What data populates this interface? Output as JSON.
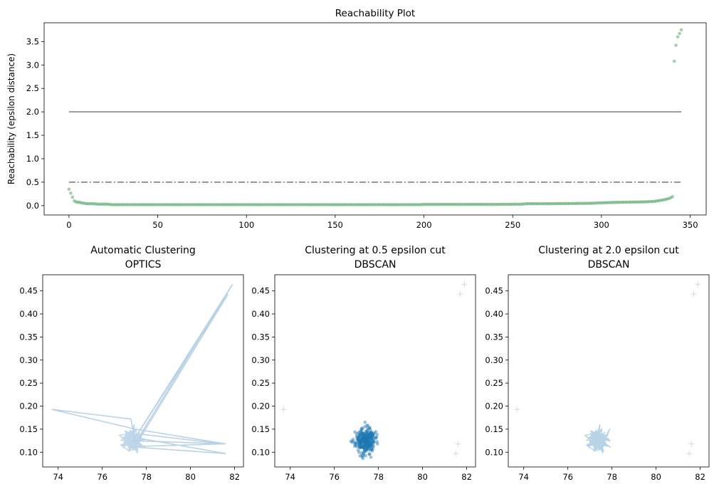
{
  "chart_data": [
    {
      "type": "scatter",
      "title": "Reachability Plot",
      "xlabel": "",
      "ylabel": "Reachability (epsilon distance)",
      "xlim": [
        -14,
        359
      ],
      "ylim": [
        -0.2,
        3.9
      ],
      "xticks": [
        "0",
        "50",
        "100",
        "150",
        "200",
        "250",
        "300",
        "350"
      ],
      "yticks": [
        "0.0",
        "0.5",
        "1.0",
        "1.5",
        "2.0",
        "2.5",
        "3.0",
        "3.5"
      ],
      "point_color": "#55a868",
      "reference_lines": [
        {
          "y": 2.0,
          "x_range": [
            0,
            345
          ],
          "style": "solid",
          "color": "#7f7f7f"
        },
        {
          "y": 0.5,
          "x_range": [
            0,
            345
          ],
          "style": "dashdot",
          "color": "#7f7f7f"
        }
      ],
      "series": [
        {
          "points": [
            [
              0,
              0.35
            ],
            [
              2,
              0.18
            ],
            [
              3,
              0.1
            ],
            [
              4,
              0.08
            ],
            [
              5,
              0.07
            ],
            [
              6,
              0.07
            ],
            [
              7,
              0.06
            ],
            [
              8,
              0.05
            ],
            [
              9,
              0.05
            ],
            [
              10,
              0.04
            ],
            [
              12,
              0.04
            ],
            [
              14,
              0.04
            ],
            [
              16,
              0.03
            ],
            [
              18,
              0.03
            ],
            [
              20,
              0.03
            ],
            [
              22,
              0.03
            ],
            [
              24,
              0.02
            ],
            [
              30,
              0.02
            ],
            [
              40,
              0.02
            ],
            [
              60,
              0.02
            ],
            [
              80,
              0.02
            ],
            [
              100,
              0.02
            ],
            [
              120,
              0.02
            ],
            [
              140,
              0.02
            ],
            [
              160,
              0.02
            ],
            [
              180,
              0.02
            ],
            [
              198,
              0.02
            ],
            [
              200,
              0.025
            ],
            [
              220,
              0.025
            ],
            [
              240,
              0.025
            ],
            [
              255,
              0.03
            ],
            [
              258,
              0.04
            ],
            [
              270,
              0.04
            ],
            [
              285,
              0.045
            ],
            [
              295,
              0.05
            ],
            [
              300,
              0.06
            ],
            [
              310,
              0.07
            ],
            [
              318,
              0.075
            ],
            [
              325,
              0.08
            ],
            [
              330,
              0.09
            ],
            [
              333,
              0.11
            ],
            [
              336,
              0.13
            ],
            [
              338,
              0.15
            ],
            [
              339,
              0.17
            ],
            [
              340,
              0.19
            ],
            [
              341,
              3.08
            ],
            [
              342,
              3.42
            ],
            [
              343,
              3.6
            ],
            [
              344,
              3.67
            ],
            [
              345,
              3.75
            ]
          ]
        }
      ]
    },
    {
      "type": "line",
      "title": "Automatic Clustering\nOPTICS",
      "xlim": [
        73.3,
        82.4
      ],
      "ylim": [
        0.068,
        0.485
      ],
      "xticks": [
        "74",
        "76",
        "78",
        "80",
        "82"
      ],
      "yticks": [
        "0.10",
        "0.15",
        "0.20",
        "0.25",
        "0.30",
        "0.35",
        "0.40",
        "0.45"
      ],
      "color": "#b8d3e6",
      "series": [
        {
          "points": [
            [
              73.7,
              0.193
            ],
            [
              77.3,
              0.172
            ],
            [
              77.5,
              0.12
            ],
            [
              81.9,
              0.464
            ],
            [
              77.6,
              0.14
            ],
            [
              81.5,
              0.118
            ],
            [
              77.2,
              0.112
            ],
            [
              81.6,
              0.097
            ],
            [
              77.7,
              0.13
            ],
            [
              81.7,
              0.443
            ],
            [
              77.4,
              0.125
            ],
            [
              81.6,
              0.118
            ],
            [
              77.5,
              0.15
            ],
            [
              73.7,
              0.193
            ]
          ]
        }
      ]
    },
    {
      "type": "scatter",
      "title": "Clustering at 0.5 epsilon cut\nDBSCAN",
      "xlim": [
        73.3,
        82.4
      ],
      "ylim": [
        0.068,
        0.485
      ],
      "xticks": [
        "74",
        "76",
        "78",
        "80",
        "82"
      ],
      "yticks": [
        "0.10",
        "0.15",
        "0.20",
        "0.25",
        "0.30",
        "0.35",
        "0.40",
        "0.45"
      ],
      "cluster_color": "#1f77b4",
      "noise_color": "#d9d9d9",
      "cluster_center": [
        77.4,
        0.125
      ],
      "noise_points": [
        [
          73.7,
          0.193
        ],
        [
          81.9,
          0.464
        ],
        [
          81.7,
          0.443
        ],
        [
          81.6,
          0.118
        ],
        [
          81.5,
          0.097
        ]
      ]
    },
    {
      "type": "line",
      "title": "Clustering at 2.0 epsilon cut\nDBSCAN",
      "xlim": [
        73.3,
        82.4
      ],
      "ylim": [
        0.068,
        0.485
      ],
      "xticks": [
        "74",
        "76",
        "78",
        "80",
        "82"
      ],
      "yticks": [
        "0.10",
        "0.15",
        "0.20",
        "0.25",
        "0.30",
        "0.35",
        "0.40",
        "0.45"
      ],
      "cluster_color": "#b8d3e6",
      "noise_color": "#d9d9d9",
      "cluster_center": [
        77.4,
        0.125
      ],
      "noise_points": [
        [
          73.7,
          0.193
        ],
        [
          81.9,
          0.464
        ],
        [
          81.7,
          0.443
        ],
        [
          81.6,
          0.118
        ],
        [
          81.5,
          0.097
        ]
      ]
    }
  ]
}
